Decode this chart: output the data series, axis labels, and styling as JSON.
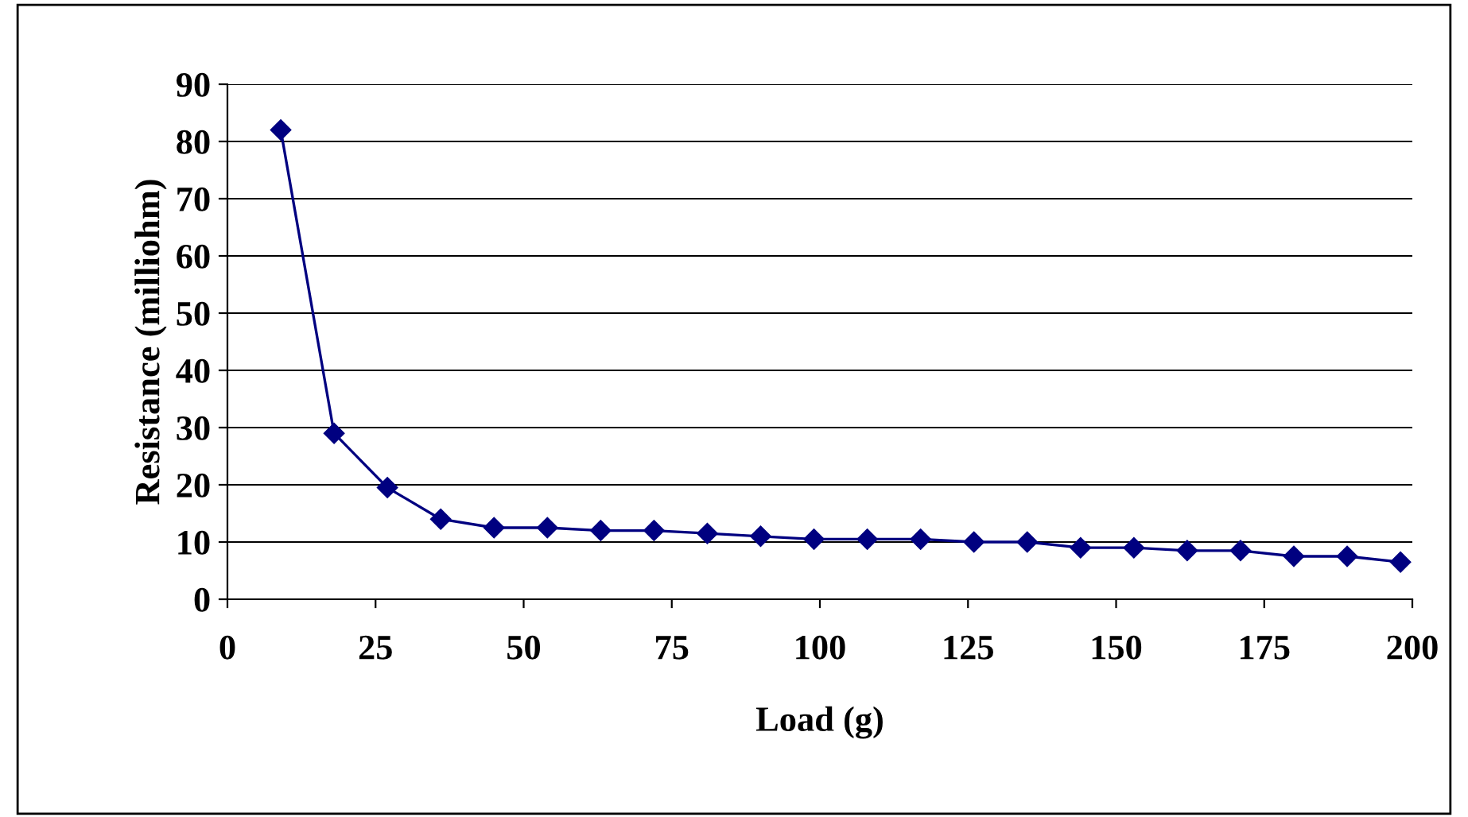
{
  "chart_data": {
    "type": "line",
    "xlabel": "Load (g)",
    "ylabel": "Resistance (milliohm)",
    "x": [
      9,
      18,
      27,
      36,
      45,
      54,
      63,
      72,
      81,
      90,
      99,
      108,
      117,
      126,
      135,
      144,
      153,
      162,
      171,
      180,
      189,
      198
    ],
    "series": [
      {
        "color": "#000080",
        "values": [
          82,
          29,
          19.5,
          14,
          12.5,
          12.5,
          12,
          12,
          11.5,
          11,
          10.5,
          10.5,
          10.5,
          10,
          10,
          9,
          9,
          8.5,
          8.5,
          7.5,
          7.5,
          6.5
        ]
      }
    ],
    "xlim": [
      0,
      200
    ],
    "xticks": [
      0,
      25,
      50,
      75,
      100,
      125,
      150,
      175,
      200
    ],
    "ylim": [
      0,
      90
    ],
    "yticks": [
      0,
      10,
      20,
      30,
      40,
      50,
      60,
      70,
      80,
      90
    ],
    "grid": "y",
    "legend": false,
    "marker": "diamond",
    "line_style": "solid"
  }
}
